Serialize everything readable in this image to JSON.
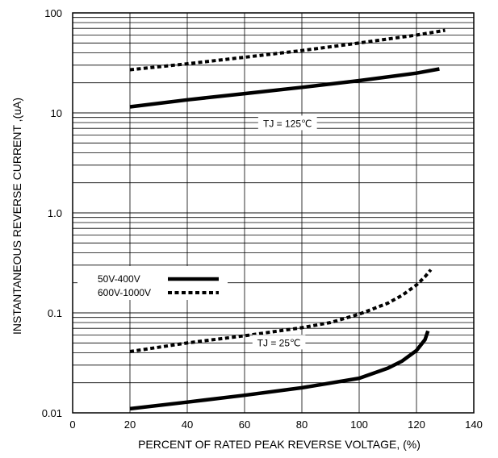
{
  "chart_data": {
    "type": "line",
    "xlabel": "PERCENT OF RATED PEAK REVERSE VOLTAGE, (%)",
    "ylabel": "INSTANTANEOUS REVERSE CURRENT ,(uA)",
    "xlim": [
      0,
      140
    ],
    "ylim": [
      0.01,
      100
    ],
    "yscale": "log",
    "grid": true,
    "x_ticks": [
      "0",
      "20",
      "40",
      "60",
      "80",
      "100",
      "120",
      "140"
    ],
    "y_ticks": [
      "0.01",
      "0.1",
      "1.0",
      "10",
      "100"
    ],
    "legend_position": "lower-left",
    "series": [
      {
        "name": "50V-400V",
        "style": "solid",
        "group": "TJ = 125℃",
        "x": [
          20,
          40,
          60,
          80,
          100,
          120,
          128
        ],
        "y": [
          11.5,
          13.5,
          15.6,
          18.0,
          21.0,
          25.0,
          27.5
        ]
      },
      {
        "name": "600V-1000V",
        "style": "dashed",
        "group": "TJ = 125℃",
        "x": [
          20,
          40,
          60,
          80,
          100,
          120,
          130
        ],
        "y": [
          27,
          31,
          36,
          42,
          50,
          60,
          67
        ]
      },
      {
        "name": "50V-400V",
        "style": "solid",
        "group": "TJ = 25℃",
        "x": [
          20,
          40,
          60,
          80,
          100,
          110,
          115,
          120,
          123,
          124
        ],
        "y": [
          0.011,
          0.0128,
          0.015,
          0.0178,
          0.0222,
          0.028,
          0.033,
          0.042,
          0.054,
          0.066
        ]
      },
      {
        "name": "600V-1000V",
        "style": "dashed",
        "group": "TJ = 25℃",
        "x": [
          20,
          40,
          60,
          80,
          90,
          100,
          110,
          115,
          120,
          123,
          125
        ],
        "y": [
          0.041,
          0.05,
          0.059,
          0.071,
          0.08,
          0.097,
          0.125,
          0.15,
          0.19,
          0.23,
          0.27
        ]
      }
    ],
    "annotations": [
      {
        "text": "TJ = 125℃",
        "x": 75,
        "y": 7.8
      },
      {
        "text": "TJ = 25℃",
        "x": 72,
        "y": 0.05
      }
    ],
    "legend": [
      {
        "label": "50V-400V",
        "style": "solid"
      },
      {
        "label": "600V-1000V",
        "style": "dashed"
      }
    ]
  }
}
